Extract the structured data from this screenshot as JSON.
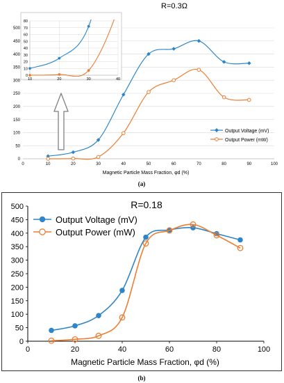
{
  "panel_labels": [
    "(a)",
    "(b)"
  ],
  "colors": {
    "voltage": "#2E86C9",
    "power": "#ED7D31",
    "grid": "#D9D9D9",
    "frame": "#000000",
    "arrow": "#7F7F7F"
  },
  "chart_data": [
    {
      "type": "line",
      "title": "R=0.3Ω",
      "xlabel": "Magnetic Particle Mass Fraction, φd (%)",
      "ylabel": "",
      "xlim": [
        0,
        100
      ],
      "ylim": [
        0,
        500
      ],
      "xticks": [
        "0",
        "10",
        "20",
        "30",
        "40",
        "50",
        "60",
        "70",
        "80",
        "90",
        "100"
      ],
      "yticks": [
        "0",
        "50",
        "100",
        "150",
        "200",
        "250",
        "300",
        "350",
        "400",
        "450",
        "500"
      ],
      "grid": true,
      "legend_position": "bottom-right",
      "series": [
        {
          "name": "Output Voltage (mV)",
          "marker": "diamond",
          "x": [
            10,
            20,
            30,
            40,
            50,
            60,
            70,
            80,
            90
          ],
          "y": [
            10,
            25,
            72,
            245,
            400,
            420,
            450,
            370,
            365
          ]
        },
        {
          "name": "Output Power (mW)",
          "marker": "circle",
          "x": [
            10,
            20,
            30,
            40,
            50,
            60,
            70,
            80,
            90
          ],
          "y": [
            0,
            1,
            7,
            98,
            255,
            300,
            340,
            235,
            225
          ]
        }
      ],
      "inset": {
        "xlim": [
          10,
          40
        ],
        "ylim": [
          0,
          80
        ],
        "xticks": [
          "10",
          "20",
          "30",
          "40"
        ],
        "yticks": [
          "0",
          "10",
          "20",
          "30",
          "40",
          "50",
          "60",
          "70",
          "80"
        ],
        "grid": true
      }
    },
    {
      "type": "line",
      "title": "R=0.18",
      "xlabel": "Magnetic Particle Mass Fraction, φd (%)",
      "ylabel": "",
      "xlim": [
        0,
        100
      ],
      "ylim": [
        0,
        500
      ],
      "xticks": [
        "0",
        "20",
        "40",
        "60",
        "80",
        "100"
      ],
      "yticks": [
        "0",
        "50",
        "100",
        "150",
        "200",
        "250",
        "300",
        "350",
        "400",
        "450",
        "500"
      ],
      "grid": false,
      "legend_position": "top-left",
      "series": [
        {
          "name": "Output Voltage (mV)",
          "marker": "filled-circle",
          "x": [
            10,
            20,
            30,
            40,
            50,
            60,
            70,
            80,
            90
          ],
          "y": [
            40,
            57,
            95,
            188,
            385,
            412,
            420,
            398,
            375
          ]
        },
        {
          "name": "Output Power (mW)",
          "marker": "open-circle",
          "x": [
            10,
            20,
            30,
            40,
            50,
            60,
            70,
            80,
            90
          ],
          "y": [
            2,
            7,
            20,
            88,
            362,
            410,
            432,
            392,
            345
          ]
        }
      ]
    }
  ]
}
